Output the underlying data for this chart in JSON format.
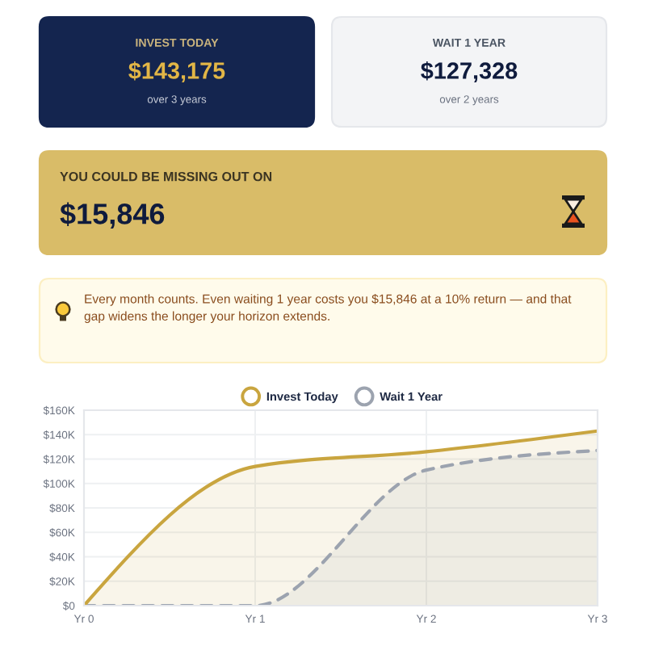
{
  "chart_data": [
    {
      "type": "other",
      "title": "INVEST TODAY",
      "annotations": [
        "$143,175",
        "over 3 years"
      ]
    },
    {
      "type": "other",
      "title": "WAIT 1 YEAR",
      "annotations": [
        "$127,328",
        "over 2 years"
      ]
    },
    {
      "type": "other",
      "title": "YOU COULD BE MISSING OUT ON",
      "annotations": [
        "$15,846"
      ]
    },
    {
      "type": "other",
      "annotations": [
        "Every month counts. Even waiting 1 year costs you $15,846 at a 10% return — and that gap widens the longer your horizon extends."
      ]
    },
    {
      "type": "area",
      "categories": [
        "Yr 0",
        "Yr 1",
        "Yr 2",
        "Yr 3"
      ],
      "series": [
        {
          "name": "Invest Today",
          "color": "#c9a53f",
          "values": [
            0,
            114,
            126,
            143
          ],
          "line_style": "solid"
        },
        {
          "name": "Wait 1 Year",
          "color": "#9ca3af",
          "values": [
            0,
            0,
            111,
            127
          ],
          "line_style": "dashed"
        }
      ],
      "ylim": [
        0,
        160
      ],
      "yticks": [
        {
          "value": 0,
          "label": "$0"
        },
        {
          "value": 20,
          "label": "$20K"
        },
        {
          "value": 40,
          "label": "$40K"
        },
        {
          "value": 60,
          "label": "$60K"
        },
        {
          "value": 80,
          "label": "$80K"
        },
        {
          "value": 100,
          "label": "$100K"
        },
        {
          "value": 120,
          "label": "$120K"
        },
        {
          "value": 140,
          "label": "$140K"
        },
        {
          "value": 160,
          "label": "$160K"
        }
      ],
      "grid": true,
      "legend": "top"
    }
  ]
}
